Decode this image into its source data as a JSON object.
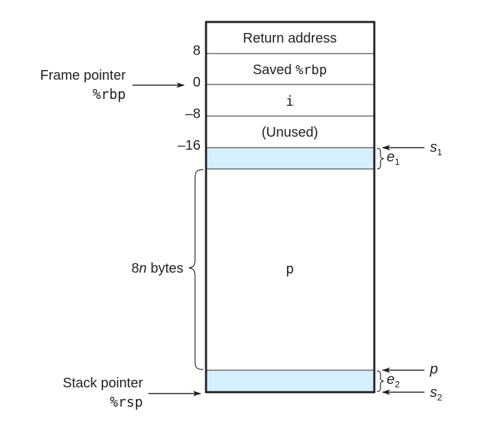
{
  "colors": {
    "stroke": "#231f20",
    "padding_fill": "#d6effc",
    "background": "#ffffff"
  },
  "stack_cells": [
    {
      "label": "Return address",
      "font": "sans"
    },
    {
      "label_prefix": "Saved ",
      "label_code": "%rbp",
      "font": "mixed"
    },
    {
      "label": "i",
      "font": "mono"
    },
    {
      "label": "(Unused)",
      "font": "sans"
    },
    {
      "label": "",
      "role": "padding e1"
    },
    {
      "label": "p",
      "font": "mono"
    },
    {
      "label": "",
      "role": "padding e2"
    }
  ],
  "offsets": [
    "8",
    "0",
    "–8",
    "–16"
  ],
  "frame_pointer": {
    "label": "Frame pointer",
    "register": "%rbp"
  },
  "stack_pointer": {
    "label": "Stack pointer",
    "register": "%rsp"
  },
  "array_size": {
    "prefix": "8",
    "var": "n",
    "suffix": " bytes"
  },
  "right_markers": {
    "s1": {
      "letter": "s",
      "sub": "1"
    },
    "e1": {
      "letter": "e",
      "sub": "1"
    },
    "p": {
      "letter": "p"
    },
    "e2": {
      "letter": "e",
      "sub": "2"
    },
    "s2": {
      "letter": "s",
      "sub": "2"
    }
  }
}
